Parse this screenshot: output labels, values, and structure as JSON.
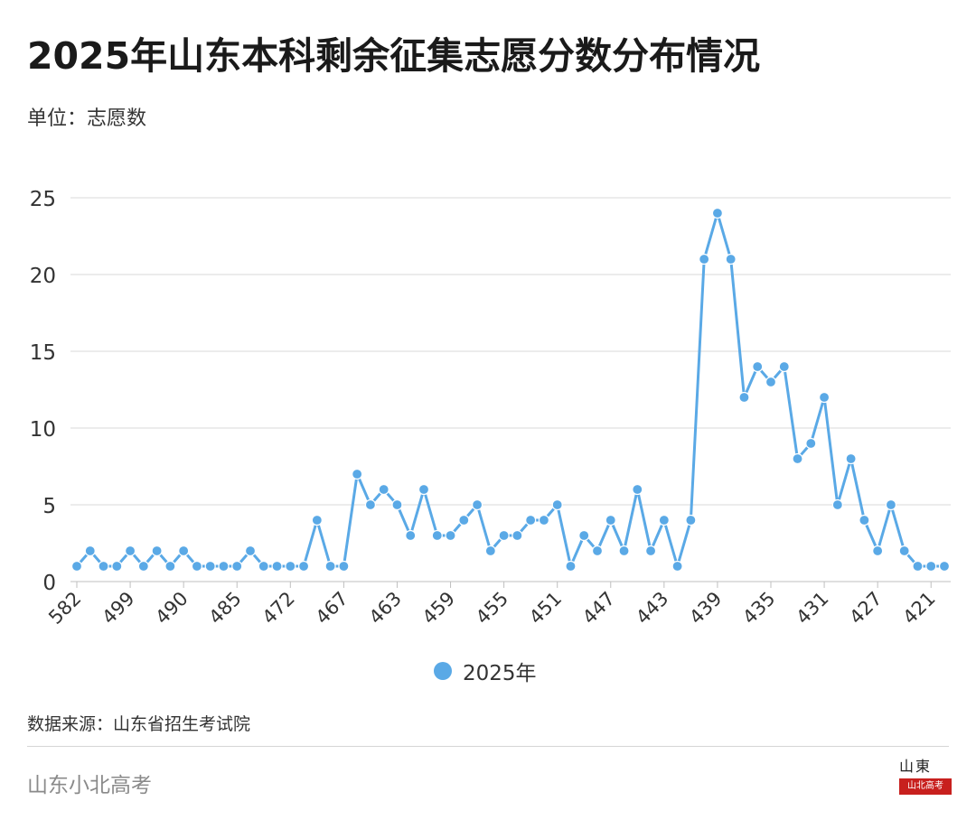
{
  "header": {
    "title": "2025年山东本科剩余征集志愿分数分布情况",
    "unit_label": "单位：志愿数"
  },
  "legend": {
    "label": "2025年"
  },
  "footer": {
    "source": "数据来源：山东省招生考试院",
    "brand": "山东小北高考",
    "seal_top": "山東",
    "seal_band": "山北高考"
  },
  "colors": {
    "series": "#5aa9e6",
    "grid": "#d9d9d9",
    "axis_text": "#333333"
  },
  "chart_data": {
    "type": "line",
    "title": "2025年山东本科剩余征集志愿分数分布情况",
    "ylabel": "单位：志愿数",
    "ylim": [
      0,
      25
    ],
    "yticks": [
      0,
      5,
      10,
      15,
      20,
      25
    ],
    "grid": true,
    "legend_position": "bottom",
    "xtick_labels": [
      {
        "index": 0,
        "label": "582"
      },
      {
        "index": 4,
        "label": "499"
      },
      {
        "index": 8,
        "label": "490"
      },
      {
        "index": 12,
        "label": "485"
      },
      {
        "index": 16,
        "label": "472"
      },
      {
        "index": 20,
        "label": "467"
      },
      {
        "index": 24,
        "label": "463"
      },
      {
        "index": 28,
        "label": "459"
      },
      {
        "index": 32,
        "label": "455"
      },
      {
        "index": 36,
        "label": "451"
      },
      {
        "index": 40,
        "label": "447"
      },
      {
        "index": 44,
        "label": "443"
      },
      {
        "index": 48,
        "label": "439"
      },
      {
        "index": 52,
        "label": "435"
      },
      {
        "index": 56,
        "label": "431"
      },
      {
        "index": 60,
        "label": "427"
      },
      {
        "index": 64,
        "label": "421"
      }
    ],
    "series": [
      {
        "name": "2025年",
        "values": [
          1,
          2,
          1,
          1,
          2,
          1,
          2,
          1,
          2,
          1,
          1,
          1,
          1,
          2,
          1,
          1,
          1,
          1,
          4,
          1,
          1,
          7,
          5,
          6,
          5,
          3,
          6,
          3,
          3,
          4,
          5,
          2,
          3,
          3,
          4,
          4,
          5,
          1,
          3,
          2,
          4,
          2,
          6,
          2,
          4,
          1,
          4,
          21,
          24,
          21,
          12,
          14,
          13,
          14,
          8,
          9,
          12,
          5,
          8,
          4,
          2,
          5,
          2,
          1,
          1,
          1
        ]
      }
    ]
  }
}
